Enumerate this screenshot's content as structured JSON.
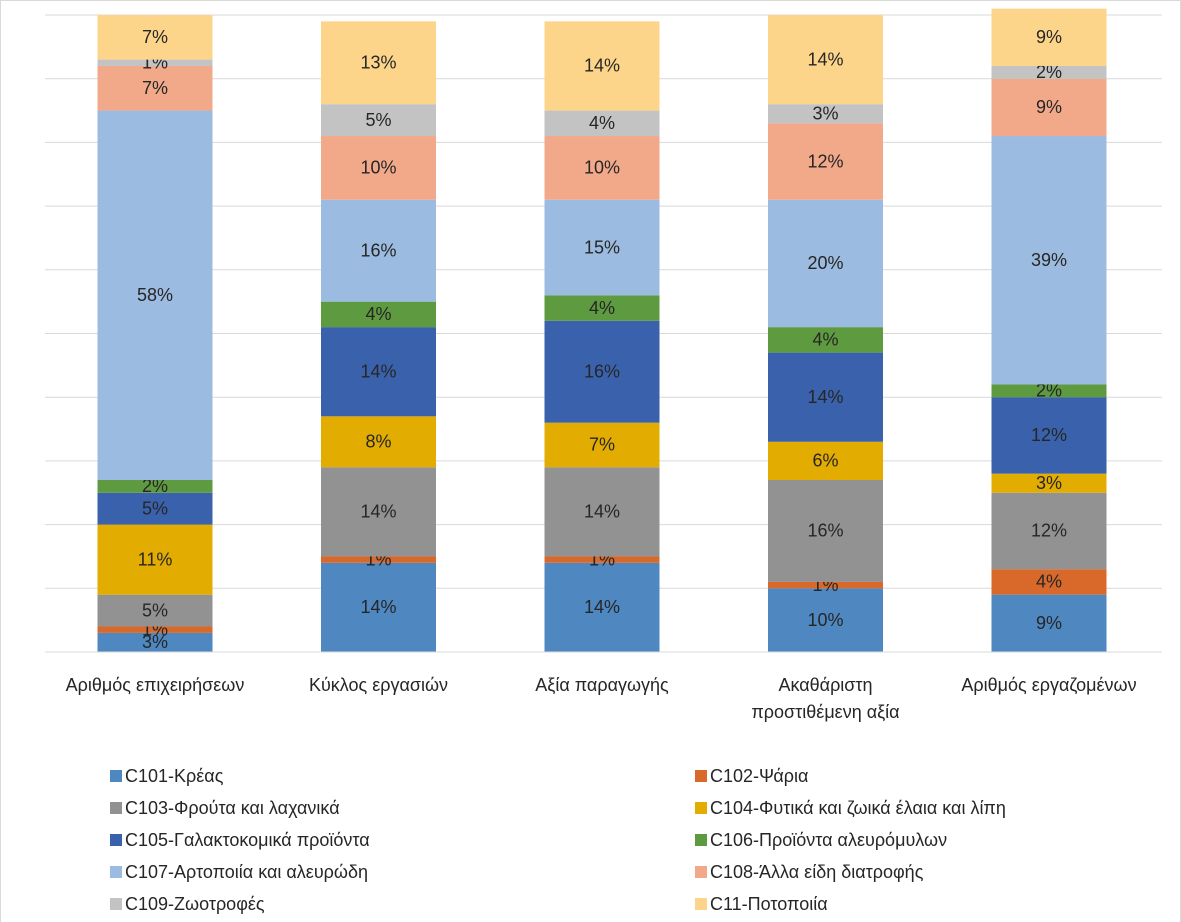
{
  "chart_data": {
    "type": "stacked_bar",
    "categories": [
      "Αριθμός επιχειρήσεων",
      "Κύκλος εργασιών",
      "Αξία παραγωγής",
      "Ακαθάριστη προστιθέμενη αξία",
      "Αριθμός εργαζομένων"
    ],
    "ylim": [
      0,
      100
    ],
    "yticks": [
      0,
      10,
      20,
      30,
      40,
      50,
      60,
      70,
      80,
      90,
      100
    ],
    "grid": true,
    "legend": "bottom",
    "series": [
      {
        "name": "C101-Κρέας",
        "color": "#4f87c1",
        "values": [
          3,
          14,
          14,
          10,
          9
        ],
        "value_labels": [
          "3%",
          "14%",
          "14%",
          "10%",
          "9%"
        ]
      },
      {
        "name": "C102-Ψάρια",
        "color": "#d8692a",
        "values": [
          1,
          1,
          1,
          1,
          4
        ],
        "value_labels": [
          "1%",
          "1%",
          "1%",
          "1%",
          "4%"
        ]
      },
      {
        "name": "C103-Φρούτα και λαχανικά",
        "color": "#929292",
        "values": [
          5,
          14,
          14,
          16,
          12
        ],
        "value_labels": [
          "5%",
          "14%",
          "14%",
          "16%",
          "12%"
        ]
      },
      {
        "name": "C104-Φυτικά και ζωικά έλαια και λίπη",
        "color": "#e2ac00",
        "values": [
          11,
          8,
          7,
          6,
          3
        ],
        "value_labels": [
          "11%",
          "8%",
          "7%",
          "6%",
          "3%"
        ]
      },
      {
        "name": "C105-Γαλακτοκομικά προϊόντα",
        "color": "#3a62ac",
        "values": [
          5,
          14,
          16,
          14,
          12
        ],
        "value_labels": [
          "5%",
          "14%",
          "16%",
          "14%",
          "12%"
        ]
      },
      {
        "name": "C106-Προϊόντα αλευρόμυλων",
        "color": "#5e9a3f",
        "values": [
          2,
          4,
          4,
          4,
          2
        ],
        "value_labels": [
          "2%",
          "4%",
          "4%",
          "4%",
          "2%"
        ]
      },
      {
        "name": "C107-Αρτοποιία και αλευρώδη",
        "color": "#9cbbe0",
        "values": [
          58,
          16,
          15,
          20,
          39
        ],
        "value_labels": [
          "58%",
          "16%",
          "15%",
          "20%",
          "39%"
        ]
      },
      {
        "name": "C108-Άλλα είδη διατροφής",
        "color": "#f2a98a",
        "values": [
          7,
          10,
          10,
          12,
          9
        ],
        "value_labels": [
          "7%",
          "10%",
          "10%",
          "12%",
          "9%"
        ]
      },
      {
        "name": "C109-Ζωοτροφές",
        "color": "#c3c3c3",
        "values": [
          1,
          5,
          4,
          3,
          2
        ],
        "value_labels": [
          "1%",
          "5%",
          "4%",
          "3%",
          "2%"
        ]
      },
      {
        "name": "C11-Ποτοποιία",
        "color": "#fdd58a",
        "values": [
          7,
          13,
          14,
          14,
          9
        ],
        "value_labels": [
          "7%",
          "13%",
          "14%",
          "14%",
          "9%"
        ]
      }
    ]
  }
}
